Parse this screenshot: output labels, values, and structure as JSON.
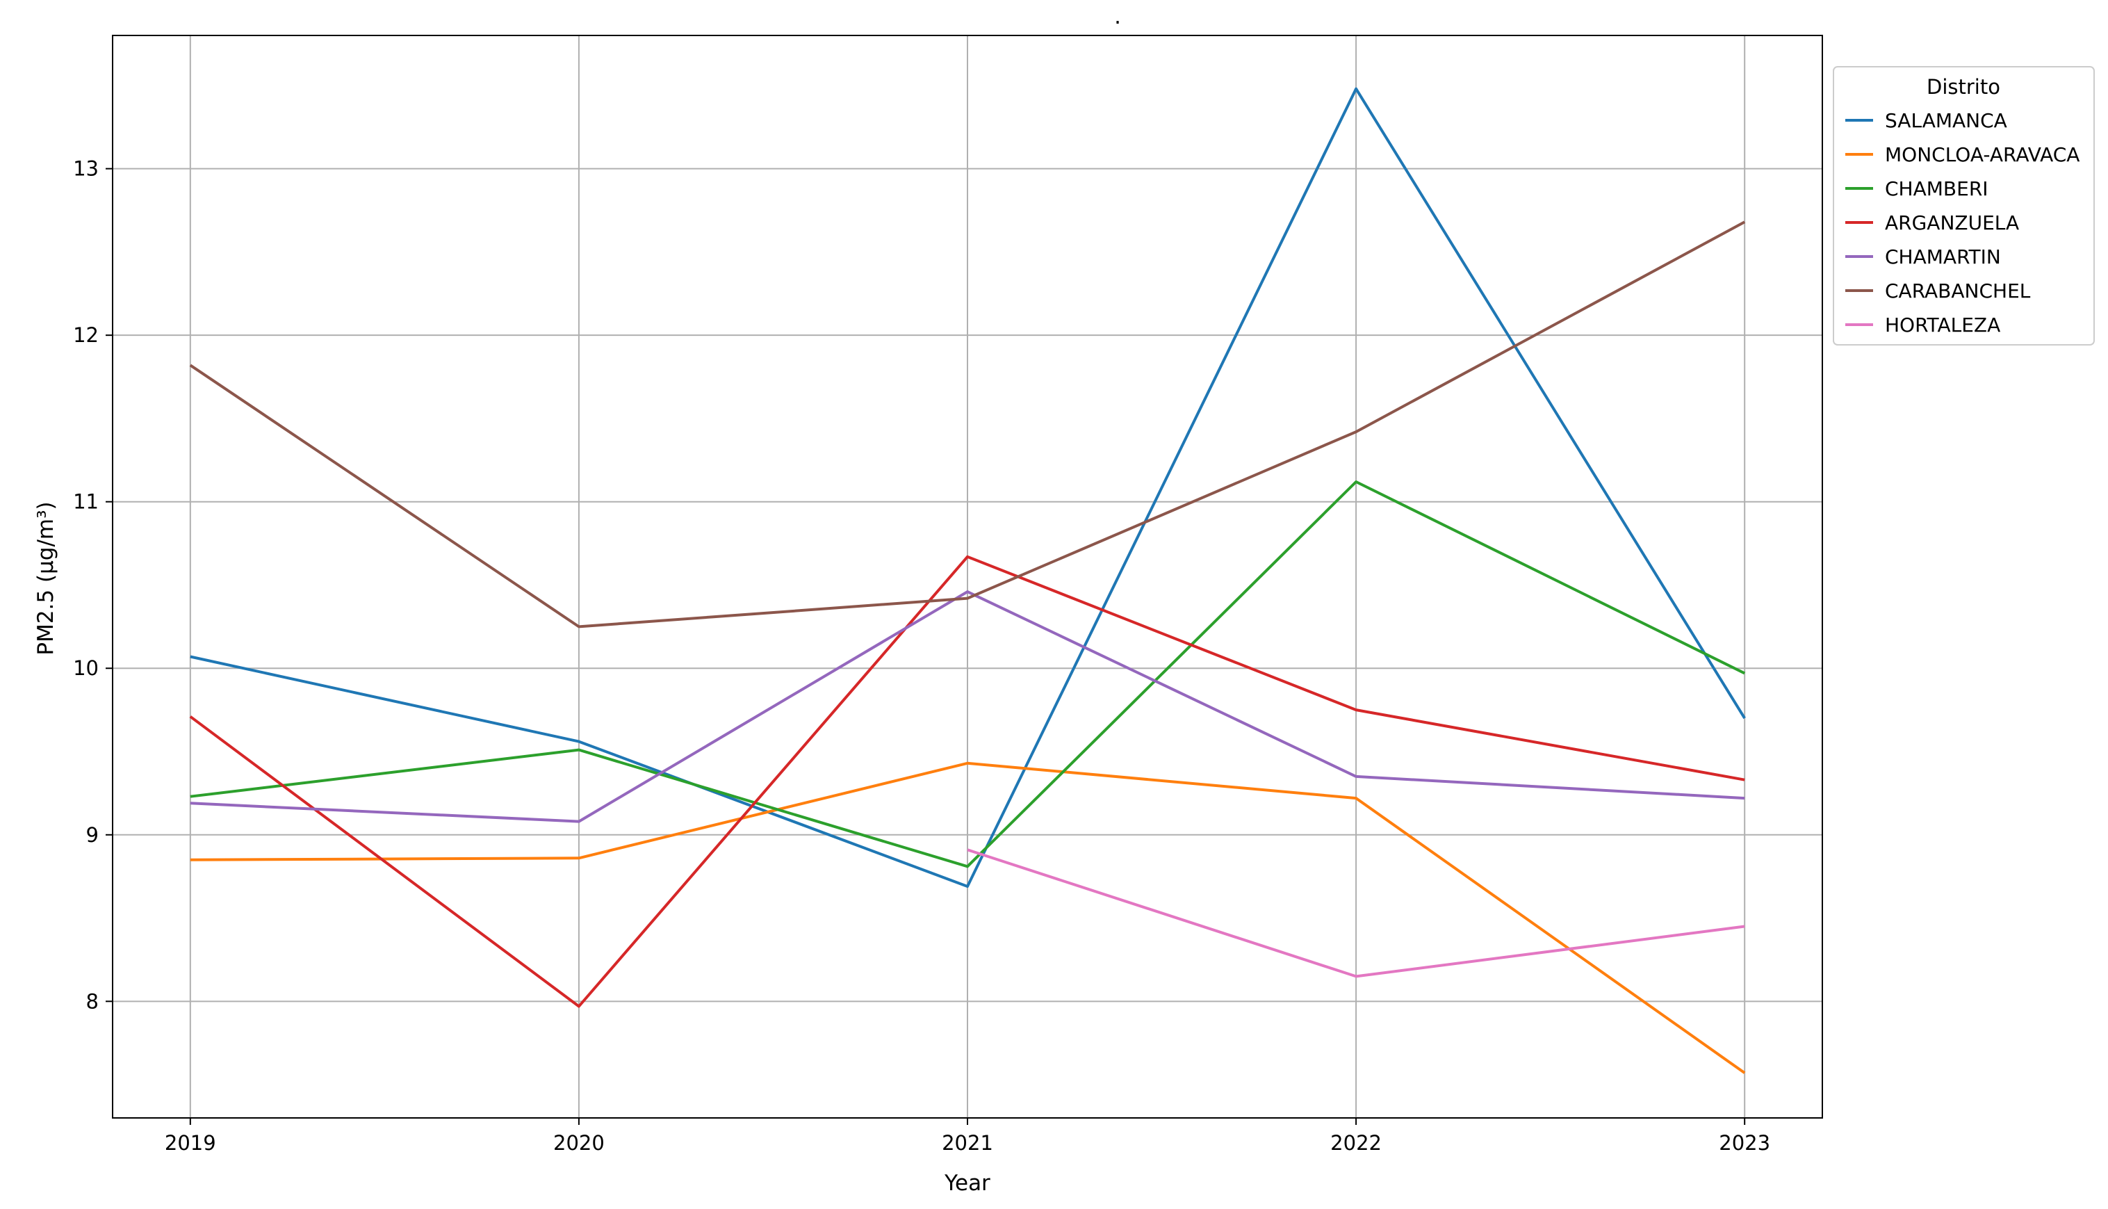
{
  "chart_data": {
    "type": "line",
    "title": ".",
    "xlabel": "Year",
    "ylabel": "PM2.5 (µg/m³)",
    "x": [
      2019,
      2020,
      2021,
      2022,
      2023
    ],
    "xticks": [
      "2019",
      "2020",
      "2021",
      "2022",
      "2023"
    ],
    "yticks": [
      "8",
      "9",
      "10",
      "11",
      "12",
      "13"
    ],
    "xlim": [
      2018.8,
      2023.2
    ],
    "ylim": [
      7.3,
      13.8
    ],
    "grid": true,
    "legend": {
      "title": "Distrito",
      "placement": "outside-right-top"
    },
    "series": [
      {
        "name": "SALAMANCA",
        "color": "#1f77b4",
        "values": [
          10.07,
          9.56,
          8.69,
          13.48,
          9.7
        ]
      },
      {
        "name": "MONCLOA-ARAVACA",
        "color": "#ff7f0e",
        "values": [
          8.85,
          8.86,
          9.43,
          9.22,
          7.57
        ]
      },
      {
        "name": "CHAMBERI",
        "color": "#2ca02c",
        "values": [
          9.23,
          9.51,
          8.81,
          11.12,
          9.97
        ]
      },
      {
        "name": "ARGANZUELA",
        "color": "#d62728",
        "values": [
          9.71,
          7.97,
          10.67,
          9.75,
          9.33
        ]
      },
      {
        "name": "CHAMARTIN",
        "color": "#9467bd",
        "values": [
          9.19,
          9.08,
          10.46,
          9.35,
          9.22
        ]
      },
      {
        "name": "CARABANCHEL",
        "color": "#8c564b",
        "values": [
          11.82,
          10.25,
          10.42,
          11.42,
          12.68
        ]
      },
      {
        "name": "HORTALEZA",
        "color": "#e377c2",
        "values": [
          null,
          null,
          8.91,
          8.15,
          8.45
        ]
      }
    ]
  }
}
